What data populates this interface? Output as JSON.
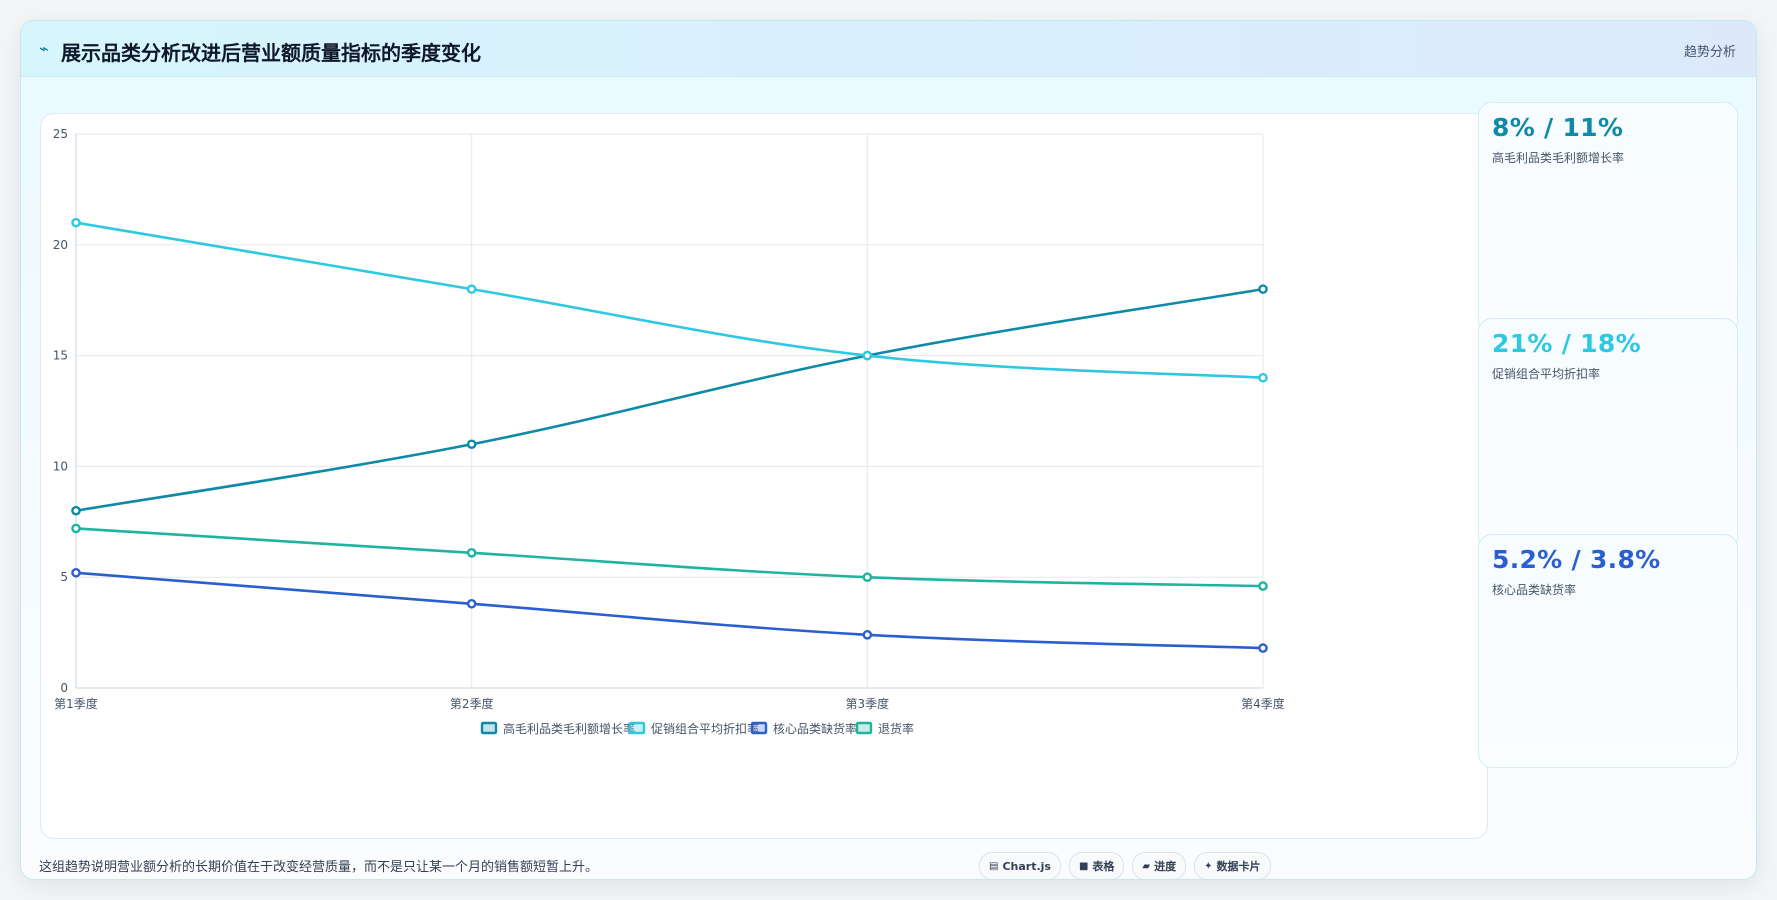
{
  "header": {
    "icon": "trend-line-icon",
    "title": "展示品类分析改进后营业额质量指标的季度变化",
    "tag": "趋势分析"
  },
  "metrics": [
    {
      "value": "8% / 11%",
      "label": "高毛利品类毛利额增长率",
      "color": "#0e8aa6"
    },
    {
      "value": "21% / 18%",
      "label": "促销组合平均折扣率",
      "color": "#2ec8e0"
    },
    {
      "value": "5.2% / 3.8%",
      "label": "核心品类缺货率",
      "color": "#2b5fcf"
    }
  ],
  "footer": {
    "note": "这组趋势说明营业额分析的长期价值在于改变经营质量，而不是只让某一个月的销售额短暂上升。",
    "chips": [
      {
        "icon": "chart-icon",
        "glyph": "▤",
        "label": "Chart.js"
      },
      {
        "icon": "table-icon",
        "glyph": "■",
        "label": "表格"
      },
      {
        "icon": "progress-icon",
        "glyph": "▰",
        "label": "进度"
      },
      {
        "icon": "sparkle-icon",
        "glyph": "✦",
        "label": "数据卡片"
      }
    ]
  },
  "chart_data": {
    "type": "line",
    "x": [
      "第1季度",
      "第2季度",
      "第3季度",
      "第4季度"
    ],
    "series": [
      {
        "name": "高毛利品类毛利额增长率",
        "values": [
          8,
          11,
          15,
          18
        ],
        "color": "#0e8aa6"
      },
      {
        "name": "促销组合平均折扣率",
        "values": [
          21,
          18,
          15,
          14
        ],
        "color": "#2ec8e0"
      },
      {
        "name": "核心品类缺货率",
        "values": [
          5.2,
          3.8,
          2.4,
          1.8
        ],
        "color": "#2b5fcf"
      },
      {
        "name": "退货率",
        "values": [
          7.2,
          6.1,
          5.0,
          4.6
        ],
        "color": "#1fb3a0"
      }
    ],
    "ylim": [
      0,
      25
    ],
    "yticks": [
      "0",
      "5",
      "10",
      "15",
      "20",
      "25"
    ],
    "grid": true,
    "legend": "bottom"
  }
}
